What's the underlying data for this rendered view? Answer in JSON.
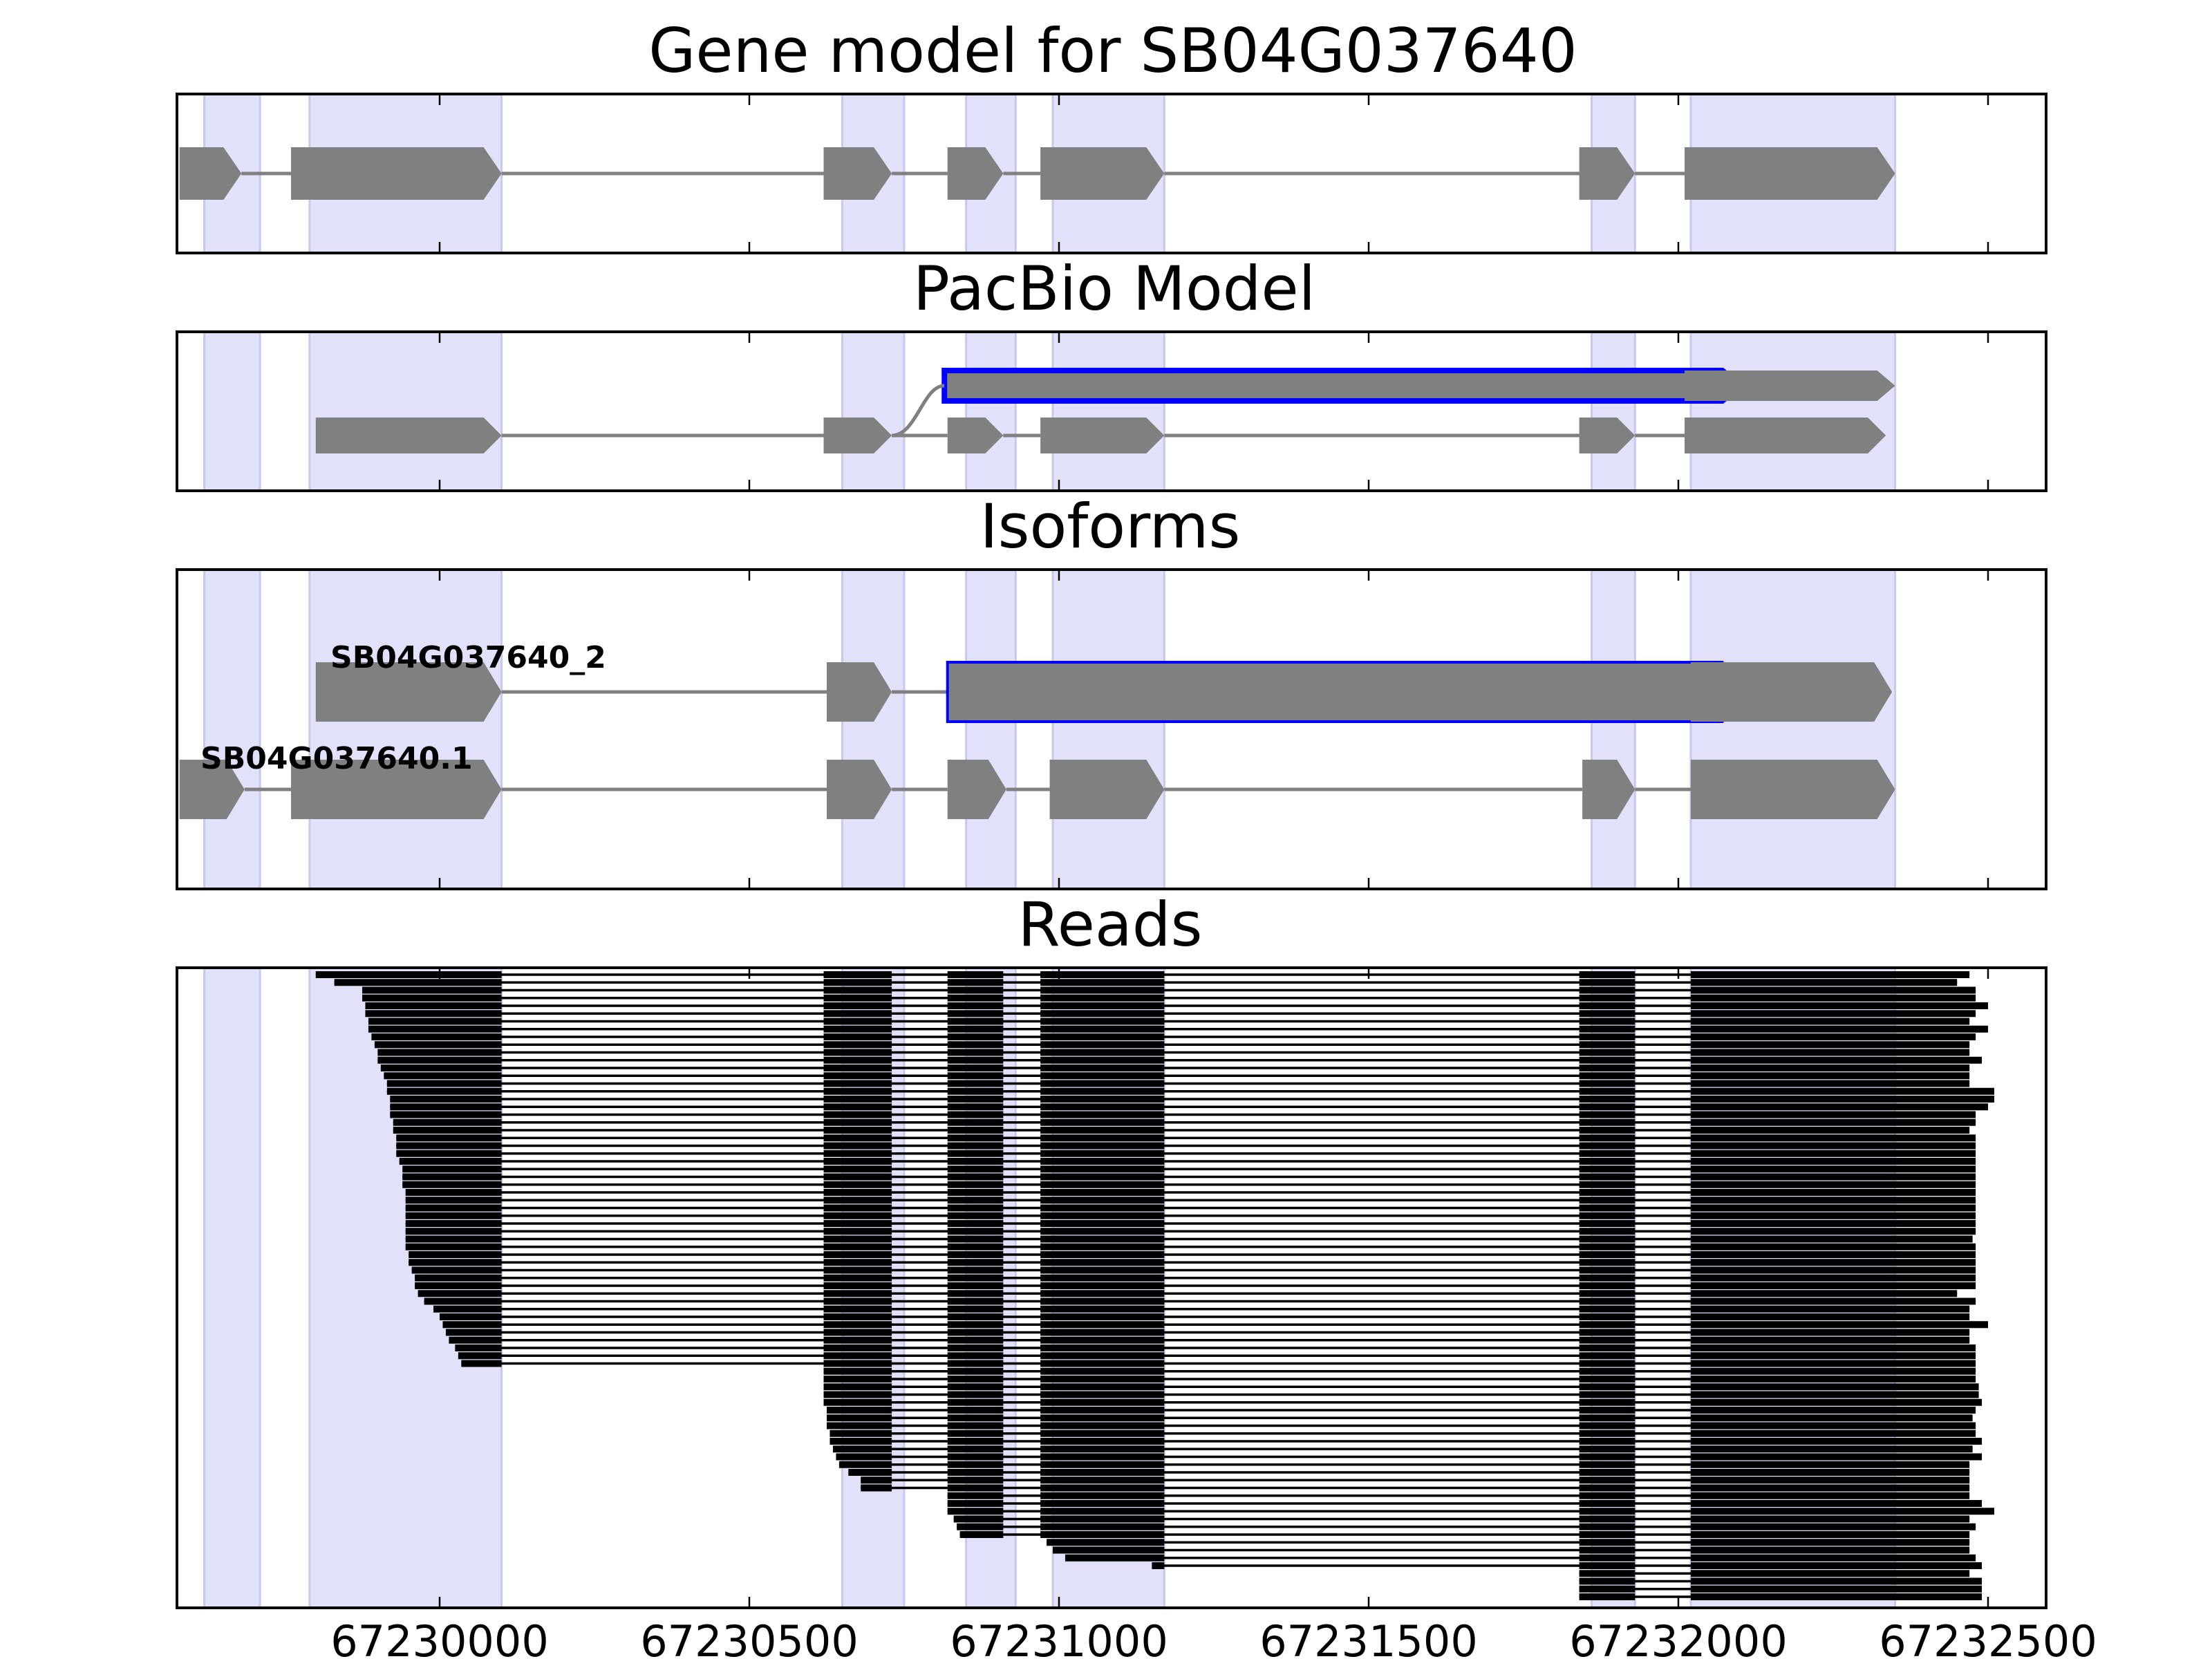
{
  "panels": {
    "gene_model": {
      "title": "Gene model for SB04G037640"
    },
    "pacbio": {
      "title": "PacBio Model"
    },
    "isoforms": {
      "title": "Isoforms"
    },
    "reads": {
      "title": "Reads"
    }
  },
  "axis": {
    "ticks": [
      "67230000",
      "67230500",
      "67231000",
      "67231500",
      "67232000",
      "67232500"
    ]
  },
  "exon_bands": [
    [
      67229620,
      67229710
    ],
    [
      67229790,
      67230100
    ],
    [
      67230650,
      67230750
    ],
    [
      67230850,
      67230930
    ],
    [
      67230990,
      67231170
    ],
    [
      67231860,
      67231930
    ],
    [
      67232020,
      67232350
    ]
  ],
  "gene_model": {
    "exons": [
      [
        67229580,
        67229680
      ],
      [
        67229760,
        67230100
      ],
      [
        67230620,
        67230730
      ],
      [
        67230820,
        67230910
      ],
      [
        67230970,
        67231170
      ],
      [
        67231840,
        67231930
      ],
      [
        67232010,
        67232350
      ]
    ]
  },
  "pacbio_model": {
    "top": {
      "blocks": [
        [
          67230815,
          67232100
        ],
        [
          67232010,
          67232350
        ]
      ],
      "highlight_index": 0
    },
    "bottom": {
      "blocks": [
        [
          67229800,
          67230100
        ],
        [
          67230620,
          67230730
        ],
        [
          67230820,
          67230910
        ],
        [
          67230970,
          67231170
        ],
        [
          67231840,
          67231930
        ],
        [
          67232010,
          67232335
        ]
      ]
    }
  },
  "isoforms": [
    {
      "name": "SB04G037640_2",
      "blocks": [
        [
          67229800,
          67230100
        ],
        [
          67230625,
          67230730
        ],
        [
          67230820,
          67232100
        ],
        [
          67232020,
          67232345
        ]
      ],
      "highlight_index": 2
    },
    {
      "name": "SB04G037640.1",
      "blocks": [
        [
          67229580,
          67229685
        ],
        [
          67229760,
          67230100
        ],
        [
          67230625,
          67230730
        ],
        [
          67230820,
          67230915
        ],
        [
          67230985,
          67231170
        ],
        [
          67231845,
          67231930
        ],
        [
          67232020,
          67232350
        ]
      ]
    }
  ],
  "reads": {
    "group_a_starts": [
      67229800,
      67229830,
      67229875,
      67229875,
      67229880,
      67229880,
      67229885,
      67229885,
      67229890,
      67229895,
      67229900,
      67229900,
      67229905,
      67229910,
      67229915,
      67229915,
      67229920,
      67229920,
      67229920,
      67229925,
      67229925,
      67229930,
      67229930,
      67229930,
      67229935,
      67229940,
      67229940,
      67229940,
      67229945,
      67229945,
      67229945,
      67229945,
      67229945,
      67229945,
      67229945,
      67229945,
      67229950,
      67229950,
      67229955,
      67229960,
      67229960,
      67229965,
      67229975,
      67229990,
      67230000,
      67230005,
      67230010,
      67230015,
      67230025,
      67230030,
      67230035
    ],
    "group_b_starts": [
      67230620,
      67230620,
      67230620,
      67230620,
      67230620,
      67230625,
      67230625,
      67230625,
      67230630,
      67230630,
      67230635,
      67230640,
      67230645,
      67230660,
      67230680,
      67230680,
      67230820,
      67230820,
      67230820,
      67230830,
      67230835,
      67230840,
      67230980,
      67230990,
      67231010,
      67231150,
      67231170,
      67231170,
      67231170,
      67231170
    ],
    "ends": [
      67232470,
      67232450,
      67232480,
      67232480,
      67232500,
      67232480,
      67232470,
      67232500,
      67232480,
      67232470,
      67232470,
      67232490,
      67232470,
      67232470,
      67232470,
      67232510,
      67232510,
      67232500,
      67232480,
      67232480,
      67232470,
      67232480,
      67232480,
      67232480,
      67232480,
      67232480,
      67232480,
      67232480,
      67232480,
      67232480,
      67232480,
      67232480,
      67232480,
      67232480,
      67232475,
      67232480,
      67232480,
      67232480,
      67232480,
      67232480,
      67232480,
      67232450,
      67232480,
      67232470,
      67232470,
      67232500,
      67232470,
      67232470,
      67232480,
      67232480,
      67232480,
      67232480,
      67232480,
      67232485,
      67232485,
      67232490,
      67232480,
      67232475,
      67232480,
      67232480,
      67232490,
      67232475,
      67232490,
      67232470,
      67232470,
      67232470,
      67232470,
      67232470,
      67232490,
      67232510,
      67232470,
      67232480,
      67232470,
      67232470,
      67232470,
      67232480,
      67232490,
      67232470,
      67232490,
      67232490,
      67232490
    ]
  }
}
